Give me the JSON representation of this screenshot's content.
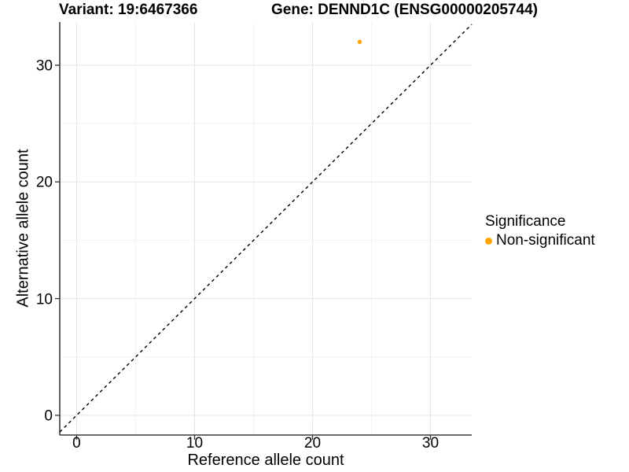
{
  "chart_data": {
    "type": "scatter",
    "titles": [
      "Variant: 19:6467366",
      "Gene: DENND1C (ENSG00000205744)"
    ],
    "xlabel": "Reference allele count",
    "ylabel": "Alternative allele count",
    "xlim": [
      -1.43,
      33.5
    ],
    "ylim": [
      -1.69,
      33.7
    ],
    "x_major_ticks": [
      0,
      10,
      20,
      30
    ],
    "x_minor_ticks": [
      5,
      15,
      25
    ],
    "y_major_ticks": [
      0,
      10,
      20,
      30
    ],
    "y_minor_ticks": [
      5,
      15,
      25
    ],
    "grid": "major+minor",
    "legend_position": "right",
    "legend_title": "Significance",
    "series": [
      {
        "name": "Non-significant",
        "color": "#FFA500",
        "points": [
          {
            "x": 24,
            "y": 32
          }
        ]
      }
    ],
    "reference_line": {
      "type": "identity_y_equals_x",
      "style": "dashed",
      "color": "#000000"
    }
  },
  "legend": {
    "title": "Significance",
    "items": [
      {
        "label": "Non-significant",
        "color": "#FFA500"
      }
    ]
  },
  "style": {
    "background": "#ffffff",
    "text_color": "#000000",
    "axis_line_color": "#3c3c3c",
    "tick_color": "#3c3c3c",
    "grid_major_color": "#e5e5e5",
    "grid_minor_color": "#f2f2f2",
    "point_color": "#FFA500"
  }
}
